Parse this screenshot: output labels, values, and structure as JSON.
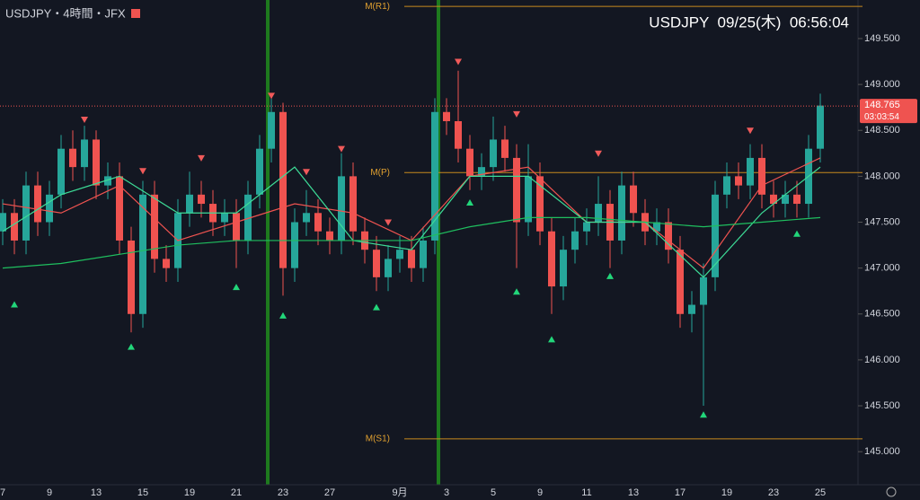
{
  "header": {
    "symbol": "USDJPY・4時間・JFX",
    "clock": "USDJPY  09/25(木)  06:56:04"
  },
  "chart_data": {
    "type": "candlestick",
    "categories": [
      "7",
      null,
      null,
      null,
      "9",
      null,
      null,
      null,
      "13",
      null,
      null,
      null,
      "15",
      null,
      null,
      null,
      "19",
      null,
      null,
      null,
      "21",
      null,
      null,
      null,
      "23",
      null,
      null,
      null,
      "27",
      null,
      null,
      null,
      null,
      null,
      "9月",
      null,
      null,
      null,
      "3",
      null,
      null,
      null,
      "5",
      null,
      null,
      null,
      "9",
      null,
      null,
      null,
      "11",
      null,
      null,
      null,
      "13",
      null,
      null,
      null,
      "17",
      null,
      null,
      null,
      "19",
      null,
      null,
      null,
      "23",
      null,
      null,
      null,
      "25"
    ],
    "open": [
      147.4,
      147.6,
      147.3,
      147.9,
      147.5,
      147.8,
      148.3,
      148.1,
      148.4,
      147.9,
      148.0,
      147.3,
      146.5,
      147.8,
      147.1,
      147.0,
      147.6,
      147.8,
      147.7,
      147.5,
      147.6,
      147.3,
      147.8,
      148.3,
      148.7,
      147.0,
      147.5,
      147.6,
      147.4,
      147.3,
      148.0,
      147.4,
      147.2,
      146.9,
      147.1,
      147.2,
      147.0,
      147.3,
      148.7,
      148.6,
      148.3,
      148.0,
      148.1,
      148.4,
      148.2,
      147.5,
      148.0,
      147.4,
      146.8,
      147.2,
      147.4,
      147.5,
      147.7,
      147.3,
      147.9,
      147.6,
      147.4,
      147.5,
      147.2,
      146.5,
      146.6,
      146.9,
      147.8,
      148.0,
      147.9,
      148.2,
      147.8,
      147.7,
      147.8,
      147.7,
      148.3
    ],
    "high": [
      147.75,
      147.75,
      148.05,
      148.05,
      147.95,
      148.45,
      148.5,
      148.55,
      148.5,
      148.15,
      148.15,
      147.45,
      147.95,
      147.95,
      147.25,
      147.75,
      148.05,
      147.95,
      147.85,
      147.75,
      147.75,
      147.95,
      148.45,
      148.85,
      148.8,
      147.65,
      147.85,
      147.75,
      147.55,
      148.25,
      148.15,
      147.55,
      147.35,
      147.25,
      147.35,
      147.35,
      147.45,
      148.85,
      148.85,
      149.15,
      148.45,
      148.25,
      148.65,
      148.55,
      148.35,
      148.35,
      148.15,
      147.55,
      147.35,
      147.55,
      147.65,
      148.0,
      147.85,
      148.05,
      148.05,
      147.75,
      147.65,
      147.65,
      147.35,
      146.75,
      147.05,
      147.95,
      148.15,
      148.15,
      148.35,
      148.35,
      147.95,
      147.95,
      147.95,
      148.45,
      148.9
    ],
    "low": [
      147.25,
      147.15,
      147.15,
      147.35,
      147.35,
      147.65,
      147.95,
      147.95,
      147.75,
      147.75,
      147.15,
      146.3,
      146.35,
      146.95,
      146.85,
      146.85,
      147.45,
      147.55,
      147.35,
      147.35,
      147.0,
      147.15,
      147.65,
      148.15,
      146.7,
      146.85,
      147.35,
      147.25,
      147.15,
      147.15,
      147.25,
      147.05,
      146.75,
      146.75,
      146.95,
      146.85,
      146.85,
      147.15,
      148.45,
      148.15,
      147.85,
      147.85,
      147.95,
      148.05,
      147.0,
      147.35,
      147.25,
      146.5,
      146.65,
      147.05,
      147.25,
      147.35,
      147.0,
      147.15,
      147.45,
      147.25,
      147.25,
      147.05,
      146.35,
      146.3,
      145.5,
      146.75,
      147.65,
      147.75,
      147.75,
      147.65,
      147.55,
      147.55,
      147.55,
      147.55,
      148.15
    ],
    "close": [
      147.6,
      147.3,
      147.9,
      147.5,
      147.8,
      148.3,
      148.1,
      148.4,
      147.9,
      148.0,
      147.3,
      146.5,
      147.8,
      147.1,
      147.0,
      147.6,
      147.8,
      147.7,
      147.5,
      147.6,
      147.3,
      147.8,
      148.3,
      148.7,
      147.0,
      147.5,
      147.6,
      147.4,
      147.3,
      148.0,
      147.4,
      147.2,
      146.9,
      147.1,
      147.2,
      147.0,
      147.3,
      148.7,
      148.6,
      148.3,
      148.0,
      148.1,
      148.4,
      148.2,
      147.5,
      148.0,
      147.4,
      146.8,
      147.2,
      147.4,
      147.5,
      147.7,
      147.3,
      147.9,
      147.6,
      147.4,
      147.5,
      147.2,
      146.5,
      146.6,
      146.9,
      147.8,
      148.0,
      147.9,
      148.2,
      147.8,
      147.7,
      147.8,
      147.7,
      148.3,
      148.77
    ],
    "up_color": "#26a69a",
    "down_color": "#ef5350",
    "series": [
      {
        "color": "#ef5350",
        "x": [
          0,
          5,
          10,
          15,
          20,
          25,
          30,
          35,
          40,
          45,
          50,
          55,
          60,
          65,
          70
        ],
        "values": [
          147.7,
          147.6,
          147.9,
          147.3,
          147.5,
          147.7,
          147.6,
          147.3,
          148.0,
          148.1,
          147.5,
          147.5,
          147.0,
          147.9,
          148.2
        ]
      },
      {
        "color": "#3ddc97",
        "x": [
          0,
          5,
          10,
          15,
          20,
          25,
          30,
          35,
          40,
          45,
          50,
          55,
          60,
          65,
          70
        ],
        "values": [
          147.4,
          147.8,
          148.0,
          147.6,
          147.6,
          148.1,
          147.3,
          147.2,
          148.0,
          148.0,
          147.5,
          147.5,
          146.9,
          147.6,
          148.1
        ]
      },
      {
        "color": "#1fbf5f",
        "x": [
          0,
          5,
          10,
          15,
          20,
          25,
          30,
          35,
          40,
          45,
          50,
          55,
          60,
          65,
          70
        ],
        "values": [
          147.0,
          147.05,
          147.15,
          147.25,
          147.3,
          147.3,
          147.3,
          147.3,
          147.45,
          147.55,
          147.55,
          147.5,
          147.45,
          147.5,
          147.55
        ]
      }
    ],
    "sell_signals": {
      "color": "#f05a5a",
      "x": [
        7,
        12,
        17,
        23,
        26,
        29,
        33,
        39,
        44,
        51,
        64
      ],
      "y": [
        148.62,
        148.06,
        148.2,
        148.88,
        148.05,
        148.3,
        147.5,
        149.25,
        148.68,
        148.25,
        148.5
      ]
    },
    "buy_signals": {
      "color": "#22d67a",
      "x": [
        1,
        11,
        20,
        24,
        32,
        40,
        44,
        47,
        52,
        60,
        68
      ],
      "y": [
        146.6,
        146.14,
        146.79,
        146.48,
        146.57,
        147.71,
        146.74,
        146.22,
        146.91,
        145.4,
        147.37
      ]
    },
    "levels": [
      {
        "label": "M(R1)",
        "value": 149.85
      },
      {
        "label": "M(P)",
        "value": 148.04
      },
      {
        "label": "M(S1)",
        "value": 145.14
      }
    ],
    "last": {
      "value": 148.765,
      "label": "148.765",
      "time": "03:03:54"
    },
    "ylim": [
      144.64,
      149.92
    ],
    "yticks": [
      {
        "value": 145.0,
        "label": "145.000"
      },
      {
        "value": 145.5,
        "label": "145.500"
      },
      {
        "value": 146.0,
        "label": "146.000"
      },
      {
        "value": 146.5,
        "label": "146.500"
      },
      {
        "value": 147.0,
        "label": "147.000"
      },
      {
        "value": 147.5,
        "label": "147.500"
      },
      {
        "value": 148.0,
        "label": "148.000"
      },
      {
        "value": 148.5,
        "label": "148.500"
      },
      {
        "value": 149.0,
        "label": "149.000"
      },
      {
        "value": 149.5,
        "label": "149.500"
      }
    ]
  }
}
